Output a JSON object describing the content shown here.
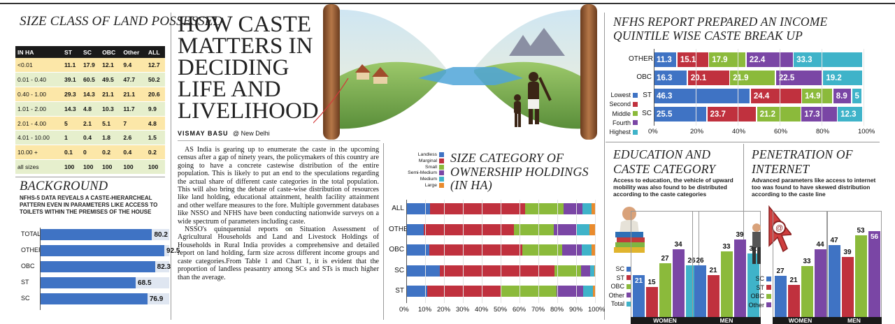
{
  "colors": {
    "blue": "#3f73c4",
    "red": "#c0313e",
    "green": "#8bba3b",
    "purple": "#7a46a5",
    "teal": "#3fb3c9",
    "orange": "#e98b2d"
  },
  "headline": {
    "l1": "HOW CASTE",
    "l2": "MATTERS IN",
    "l3": "DECIDING",
    "l4": "LIFE AND",
    "l5": "LIVELIHOOD"
  },
  "byline": {
    "name": "VISMAY BASU",
    "place": "@ New Delhi"
  },
  "body": {
    "p1": "AS India is gearing up to enumerate the caste in the upcoming census after a gap of ninety years, the policymakers of this country are going to have a concrete castewise distribution of the entire population. This is likely to put an end to the speculations regarding the actual share of different caste categories in the total population. This will also bring the debate of caste-wise distribution of resources like land holding, educational attainment, health facility attainment and other welfare measures to the fore. Multiple government databases like NSSO and NFHS have been conducting nationwide surveys on a wide spectrum of parameters including caste.",
    "p2": "NSSO's quinquennial reports on Situation Assessment of Agricultural Households and Land and Livestock Holdings of Households in Rural India provides a comprehensive and detailed report on land holding, farm size across different income groups and caste categories.From Table 1 and Chart 1, it is evident that the proportion of landless peasantry among SCs and STs is much higher than the average."
  },
  "chart_data": [
    {
      "type": "table",
      "title": "SIZE CLASS OF LAND POSSESSED",
      "columns": [
        "IN HA",
        "ST",
        "SC",
        "OBC",
        "Other",
        "ALL"
      ],
      "rows": [
        [
          "<0.01",
          "11.1",
          "17.9",
          "12.1",
          "9.4",
          "12.7"
        ],
        [
          "0.01 - 0.40",
          "39.1",
          "60.5",
          "49.5",
          "47.7",
          "50.2"
        ],
        [
          "0.40 - 1.00",
          "29.3",
          "14.3",
          "21.1",
          "21.1",
          "20.6"
        ],
        [
          "1.01 - 2.00",
          "14.3",
          "4.8",
          "10.3",
          "11.7",
          "9.9"
        ],
        [
          "2.01 - 4.00",
          "5",
          "2.1",
          "5.1",
          "7",
          "4.8"
        ],
        [
          "4.01 - 10.00",
          "1",
          "0.4",
          "1.8",
          "2.6",
          "1.5"
        ],
        [
          "10.00 +",
          "0.1",
          "0",
          "0.2",
          "0.4",
          "0.2"
        ],
        [
          "all sizes",
          "100",
          "100",
          "100",
          "100",
          "100"
        ]
      ]
    },
    {
      "type": "bar",
      "title": "BACKGROUND",
      "subtitle": "NFHS-5 DATA REVEALS A CASTE-HIERARCHEAL PATTERN EVEN IN PARAMETERS LIKE ACCESS TO TOILETS WITHIN THE PREMISES OF THE HOUSE",
      "categories": [
        "TOTAL",
        "OTHER",
        "OBC",
        "ST",
        "SC"
      ],
      "values": [
        80.2,
        92.5,
        82.3,
        68.5,
        76.9
      ],
      "xlim": [
        0,
        100
      ]
    },
    {
      "type": "bar",
      "stacked": true,
      "title": "SIZE CATEGORY OF OWNERSHIP HOLDINGS (IN HA)",
      "categories": [
        "ALL",
        "OTHER",
        "OBC",
        "SC",
        "ST"
      ],
      "legend": [
        "Landless",
        "Marginal",
        "Small",
        "Semi-Medium",
        "Medium",
        "Large"
      ],
      "series": [
        {
          "name": "Landless",
          "values": [
            12.7,
            9.4,
            12.1,
            17.9,
            11.1
          ]
        },
        {
          "name": "Marginal",
          "values": [
            50.2,
            47.7,
            49.5,
            60.5,
            39.1
          ]
        },
        {
          "name": "Small",
          "values": [
            20.6,
            21.1,
            21.1,
            14.3,
            29.3
          ]
        },
        {
          "name": "Semi-Medium",
          "values": [
            9.9,
            11.7,
            10.3,
            4.8,
            14.3
          ]
        },
        {
          "name": "Medium",
          "values": [
            4.8,
            7.0,
            5.1,
            2.1,
            5.0
          ]
        },
        {
          "name": "Large",
          "values": [
            1.8,
            3.1,
            1.9,
            0.4,
            1.2
          ]
        }
      ],
      "xticks": [
        "0%",
        "10%",
        "20%",
        "30%",
        "40%",
        "50%",
        "60%",
        "70%",
        "80%",
        "90%",
        "100%"
      ]
    },
    {
      "type": "bar",
      "stacked": true,
      "title": "NFHS REPORT PREPARED AN INCOME QUINTILE WISE CASTE BREAK UP",
      "categories": [
        "OTHER",
        "OBC",
        "ST",
        "SC"
      ],
      "legend": [
        "Lowest",
        "Second",
        "Middle",
        "Fourth",
        "Highest"
      ],
      "series": [
        {
          "name": "Lowest",
          "values": [
            11.3,
            16.3,
            46.3,
            25.5
          ],
          "labels": [
            "11.3",
            "16.3",
            "46.3",
            "25.5"
          ]
        },
        {
          "name": "Second",
          "values": [
            15.1,
            20.1,
            24.4,
            23.7
          ],
          "labels": [
            "15.1",
            "20.1",
            "24.4",
            "23.7"
          ]
        },
        {
          "name": "Middle",
          "values": [
            17.9,
            21.9,
            14.9,
            21.2
          ],
          "labels": [
            "17.9",
            "21.9",
            "14.9",
            "21.2"
          ]
        },
        {
          "name": "Fourth",
          "values": [
            22.4,
            22.5,
            8.9,
            17.3
          ],
          "labels": [
            "22.4",
            "22.5",
            "8.9",
            "17.3"
          ]
        },
        {
          "name": "Highest",
          "values": [
            33.3,
            19.2,
            5,
            12.3
          ],
          "labels": [
            "33.3",
            "19.2",
            "5",
            "12.3"
          ]
        }
      ],
      "xticks": [
        "0%",
        "20%",
        "40%",
        "60%",
        "80%",
        "100%"
      ]
    },
    {
      "type": "bar",
      "title": "EDUCATION AND CASTE CATEGORY",
      "subtitle": "Access to education, the vehicle of upward mobility was also found to be distributed according to the caste categories",
      "legend": [
        "SC",
        "ST",
        "OBC",
        "Other",
        "Total"
      ],
      "groups": [
        {
          "name": "WOMEN",
          "values": [
            21,
            15,
            27,
            34,
            26
          ]
        },
        {
          "name": "MEN",
          "values": [
            26,
            21,
            33,
            39,
            32
          ]
        }
      ]
    },
    {
      "type": "bar",
      "title": "PENETRATION OF INTERNET",
      "subtitle": "Advanced parameters like access to internet too was found to have skewed distribution according to the caste line",
      "legend": [
        "SC",
        "ST",
        "OBC",
        "Other"
      ],
      "groups": [
        {
          "name": "WOMEN",
          "values": [
            27,
            21,
            33,
            44
          ]
        },
        {
          "name": "MEN",
          "values": [
            47,
            39,
            53,
            56
          ]
        }
      ]
    }
  ]
}
